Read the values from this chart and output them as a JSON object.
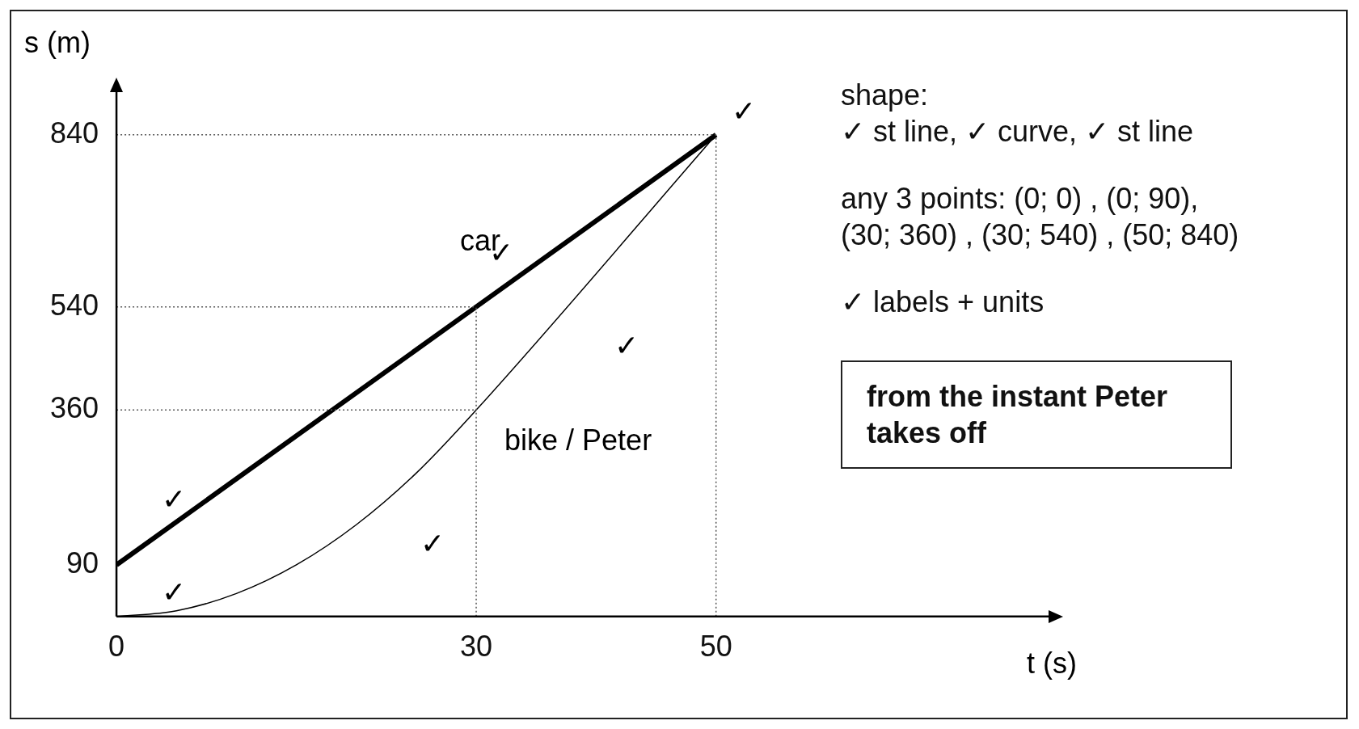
{
  "chart_data": {
    "type": "line",
    "xlabel": "t (s)",
    "ylabel": "s (m)",
    "xlim": [
      0,
      78
    ],
    "ylim": [
      0,
      920
    ],
    "xticks": [
      0,
      30,
      50
    ],
    "yticks": [
      90,
      360,
      540,
      840
    ],
    "grid": false,
    "legend": false,
    "marker": "none",
    "line_style": "solid",
    "series": [
      {
        "name": "car",
        "color": "#000000",
        "x": [
          0,
          30,
          50
        ],
        "values": [
          90,
          540,
          840
        ]
      },
      {
        "name": "bike / Peter",
        "color": "#000000",
        "x": [
          0,
          5,
          10,
          15,
          20,
          25,
          30,
          50
        ],
        "values": [
          0,
          10,
          40,
          90,
          160,
          250,
          360,
          840
        ]
      }
    ],
    "ref_lines": [
      {
        "axis": "y",
        "value": 840,
        "color": "#555555",
        "line_style": "dotted"
      },
      {
        "axis": "y",
        "value": 540,
        "color": "#555555",
        "line_style": "dotted"
      },
      {
        "axis": "y",
        "value": 360,
        "color": "#555555",
        "line_style": "dotted"
      },
      {
        "axis": "x",
        "value": 30,
        "color": "#555555",
        "line_style": "dotted"
      },
      {
        "axis": "x",
        "value": 50,
        "color": "#555555",
        "line_style": "dotted"
      }
    ],
    "annotations": [
      "shape:",
      "✓ st line, ✓ curve, ✓ st line",
      "any 3 points: (0; 0) , (0; 90),\n(30; 360) , (30; 540) , (50; 840)",
      "✓ labels + units",
      "from the instant Peter takes off",
      "✓",
      "✓",
      "✓",
      "✓",
      "✓",
      "✓"
    ]
  }
}
